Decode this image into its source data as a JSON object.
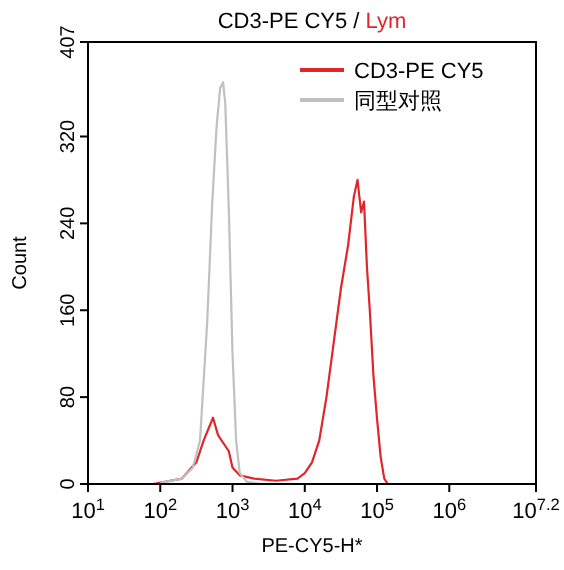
{
  "chart_data": {
    "type": "line",
    "title": "CD3-PE CY5 / Lym",
    "xlabel": "PE-CY5-H*",
    "ylabel": "Count",
    "log": "x",
    "xlim": [
      10,
      15848932
    ],
    "ylim": [
      0,
      407
    ],
    "xticks": [
      {
        "value": 10,
        "label": "10$^{1}$"
      },
      {
        "value": 100,
        "label": "10$^{2}$"
      },
      {
        "value": 1000,
        "label": "10$^{3}$"
      },
      {
        "value": 10000,
        "label": "10$^{4}$"
      },
      {
        "value": 100000,
        "label": "10$^{5}$"
      },
      {
        "value": 1000000,
        "label": "10$^{6}$"
      },
      {
        "value": 15848932,
        "label": "10$^{7.2}$"
      }
    ],
    "yticks": [
      0,
      80,
      160,
      240,
      320,
      407
    ],
    "legend": "top right",
    "grid": false,
    "marker": "none",
    "line_style": "solid",
    "series": [
      {
        "name": "CD3-PE CY5",
        "color": "#e0262b",
        "x": [
          79,
          200,
          316,
          398,
          537,
          631,
          794,
          891,
          1000,
          1259,
          1995,
          3981,
          7943,
          10000,
          12589,
          15849,
          19953,
          25119,
          31623,
          39811,
          47863,
          53703,
          60256,
          66069,
          72444,
          79433,
          89125,
          100000,
          112202,
          125893,
          141254
        ],
        "values": [
          0,
          5,
          20,
          40,
          61,
          45,
          35,
          30,
          15,
          8,
          5,
          3,
          5,
          10,
          20,
          40,
          80,
          130,
          180,
          220,
          265,
          280,
          250,
          260,
          200,
          160,
          100,
          60,
          25,
          5,
          0
        ]
      },
      {
        "name": "同型对照",
        "color": "#c0c0c0",
        "x": [
          100,
          200,
          282,
          355,
          447,
          525,
          603,
          676,
          741,
          794,
          891,
          1000,
          1122,
          1259,
          1585,
          2512
        ],
        "values": [
          1,
          5,
          15,
          40,
          150,
          260,
          330,
          365,
          370,
          350,
          250,
          120,
          40,
          10,
          2,
          0
        ]
      }
    ]
  }
}
